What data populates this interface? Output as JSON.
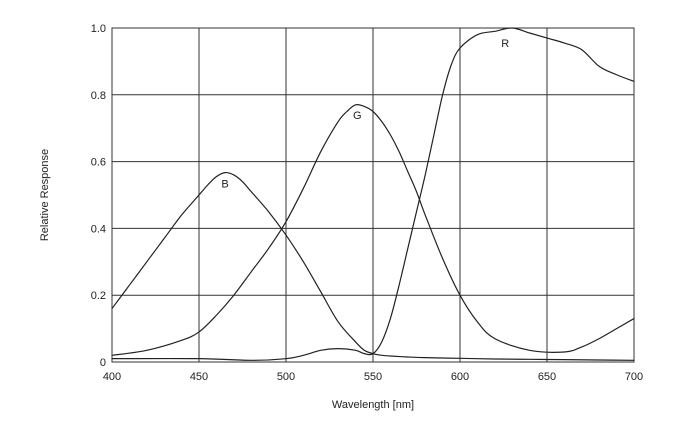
{
  "chart_data": {
    "type": "line",
    "title": "",
    "xlabel": "Wavelength [nm]",
    "ylabel": "Relative Response",
    "xlim": [
      400,
      700
    ],
    "ylim": [
      0,
      1.0
    ],
    "grid": true,
    "x_ticks": [
      400,
      450,
      500,
      550,
      600,
      650,
      700
    ],
    "x_tick_labels": [
      "400",
      "450",
      "500",
      "550",
      "600",
      "650",
      "700"
    ],
    "y_ticks": [
      0,
      0.2,
      0.4,
      0.6,
      0.8,
      1.0
    ],
    "y_tick_labels": [
      "0",
      "0.2",
      "0.4",
      "0.6",
      "0.8",
      "1.0"
    ],
    "series": [
      {
        "name": "B",
        "label_at": [
          465,
          0.535
        ],
        "x": [
          400,
          410,
          420,
          430,
          440,
          450,
          455,
          460,
          465,
          470,
          475,
          480,
          490,
          500,
          510,
          520,
          530,
          540,
          545,
          550,
          555,
          560,
          570,
          580,
          600,
          620,
          640,
          660,
          680,
          700
        ],
        "y": [
          0.16,
          0.23,
          0.3,
          0.37,
          0.44,
          0.5,
          0.53,
          0.555,
          0.567,
          0.56,
          0.54,
          0.51,
          0.45,
          0.38,
          0.3,
          0.21,
          0.12,
          0.06,
          0.035,
          0.025,
          0.02,
          0.018,
          0.015,
          0.013,
          0.011,
          0.009,
          0.008,
          0.007,
          0.006,
          0.005
        ]
      },
      {
        "name": "G",
        "label_at": [
          541,
          0.74
        ],
        "x": [
          400,
          420,
          440,
          450,
          460,
          470,
          480,
          490,
          500,
          510,
          520,
          530,
          535,
          540,
          545,
          550,
          555,
          560,
          565,
          570,
          575,
          580,
          590,
          600,
          610,
          620,
          640,
          660,
          670,
          680,
          690,
          700
        ],
        "y": [
          0.02,
          0.035,
          0.065,
          0.09,
          0.14,
          0.2,
          0.27,
          0.34,
          0.42,
          0.52,
          0.63,
          0.72,
          0.75,
          0.77,
          0.765,
          0.75,
          0.72,
          0.68,
          0.63,
          0.57,
          0.51,
          0.44,
          0.31,
          0.2,
          0.12,
          0.07,
          0.035,
          0.03,
          0.045,
          0.07,
          0.1,
          0.13
        ]
      },
      {
        "name": "R",
        "label_at": [
          626,
          0.955
        ],
        "x": [
          400,
          450,
          480,
          500,
          510,
          520,
          530,
          540,
          545,
          550,
          555,
          560,
          565,
          570,
          575,
          580,
          585,
          590,
          595,
          600,
          610,
          620,
          630,
          640,
          650,
          660,
          670,
          680,
          690,
          700
        ],
        "y": [
          0.01,
          0.01,
          0.005,
          0.01,
          0.02,
          0.035,
          0.04,
          0.035,
          0.025,
          0.025,
          0.06,
          0.13,
          0.23,
          0.34,
          0.45,
          0.56,
          0.68,
          0.8,
          0.89,
          0.94,
          0.98,
          0.99,
          1.0,
          0.985,
          0.97,
          0.955,
          0.935,
          0.885,
          0.86,
          0.84
        ]
      }
    ]
  }
}
